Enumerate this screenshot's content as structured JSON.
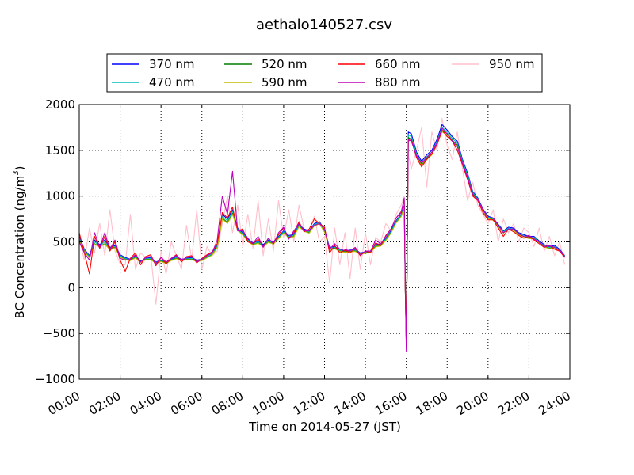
{
  "chart_data": {
    "type": "line",
    "title": "aethalo140527.csv",
    "xlabel": "Time on 2014-05-27 (JST)",
    "ylabel_main": "BC Concentration (ng/m",
    "ylabel_sup": "3",
    "ylabel_close": ")",
    "xlim": [
      0,
      24
    ],
    "ylim": [
      -1000,
      2000
    ],
    "grid": true,
    "legend_position": "top",
    "x_ticks": [
      {
        "value": 0,
        "label": "00:00"
      },
      {
        "value": 2,
        "label": "02:00"
      },
      {
        "value": 4,
        "label": "04:00"
      },
      {
        "value": 6,
        "label": "06:00"
      },
      {
        "value": 8,
        "label": "08:00"
      },
      {
        "value": 10,
        "label": "10:00"
      },
      {
        "value": 12,
        "label": "12:00"
      },
      {
        "value": 14,
        "label": "14:00"
      },
      {
        "value": 16,
        "label": "16:00"
      },
      {
        "value": 18,
        "label": "18:00"
      },
      {
        "value": 20,
        "label": "20:00"
      },
      {
        "value": 22,
        "label": "22:00"
      },
      {
        "value": 24,
        "label": "24:00"
      }
    ],
    "y_ticks": [
      {
        "value": 2000,
        "label": "2000"
      },
      {
        "value": 1500,
        "label": "1500"
      },
      {
        "value": 1000,
        "label": "1000"
      },
      {
        "value": 500,
        "label": "500"
      },
      {
        "value": 0,
        "label": "0"
      },
      {
        "value": -500,
        "label": "−500"
      },
      {
        "value": -1000,
        "label": "−1000"
      }
    ],
    "x": [
      0,
      0.25,
      0.5,
      0.75,
      1,
      1.25,
      1.5,
      1.75,
      2,
      2.25,
      2.5,
      2.75,
      3,
      3.25,
      3.5,
      3.75,
      4,
      4.25,
      4.5,
      4.75,
      5,
      5.25,
      5.5,
      5.75,
      6,
      6.25,
      6.5,
      6.75,
      7,
      7.25,
      7.5,
      7.75,
      8,
      8.25,
      8.5,
      8.75,
      9,
      9.25,
      9.5,
      9.75,
      10,
      10.25,
      10.5,
      10.75,
      11,
      11.25,
      11.5,
      11.75,
      12,
      12.25,
      12.5,
      12.75,
      13,
      13.25,
      13.5,
      13.75,
      14,
      14.25,
      14.5,
      14.75,
      15,
      15.25,
      15.5,
      15.75,
      15.9,
      15.95,
      16.0,
      16.1,
      16.25,
      16.5,
      16.75,
      17,
      17.25,
      17.5,
      17.75,
      18,
      18.25,
      18.5,
      18.75,
      19,
      19.25,
      19.5,
      19.75,
      20,
      20.25,
      20.5,
      20.75,
      21,
      21.25,
      21.5,
      21.75,
      22,
      22.25,
      22.5,
      22.75,
      23,
      23.25,
      23.5,
      23.75
    ],
    "series": [
      {
        "name": "370 nm",
        "color": "#0000ff",
        "values": [
          560,
          420,
          350,
          520,
          470,
          520,
          440,
          460,
          360,
          330,
          310,
          350,
          290,
          320,
          330,
          280,
          300,
          280,
          310,
          340,
          310,
          320,
          330,
          300,
          310,
          350,
          380,
          460,
          800,
          750,
          850,
          650,
          600,
          530,
          490,
          510,
          470,
          520,
          500,
          560,
          620,
          570,
          580,
          690,
          640,
          620,
          700,
          720,
          630,
          440,
          450,
          420,
          400,
          410,
          420,
          380,
          390,
          400,
          470,
          480,
          540,
          620,
          730,
          800,
          900,
          0,
          -650,
          1700,
          1680,
          1480,
          1380,
          1450,
          1500,
          1620,
          1780,
          1720,
          1650,
          1600,
          1400,
          1250,
          1050,
          980,
          860,
          780,
          760,
          690,
          620,
          660,
          650,
          600,
          580,
          560,
          560,
          510,
          470,
          450,
          460,
          420,
          350
        ]
      },
      {
        "name": "470 nm",
        "color": "#00bfbf",
        "values": [
          540,
          410,
          340,
          500,
          460,
          500,
          430,
          450,
          350,
          320,
          305,
          340,
          285,
          315,
          320,
          275,
          295,
          275,
          305,
          330,
          305,
          315,
          320,
          295,
          305,
          340,
          370,
          450,
          780,
          730,
          830,
          640,
          590,
          520,
          480,
          500,
          460,
          510,
          490,
          550,
          610,
          560,
          570,
          680,
          630,
          610,
          690,
          710,
          620,
          430,
          440,
          410,
          395,
          400,
          410,
          375,
          385,
          395,
          460,
          470,
          530,
          610,
          720,
          790,
          890,
          0,
          -640,
          1670,
          1650,
          1460,
          1360,
          1430,
          1480,
          1600,
          1750,
          1700,
          1630,
          1580,
          1380,
          1230,
          1040,
          970,
          850,
          770,
          750,
          680,
          610,
          650,
          640,
          590,
          570,
          550,
          550,
          500,
          460,
          440,
          450,
          410,
          345
        ]
      },
      {
        "name": "520 nm",
        "color": "#007f00",
        "values": [
          520,
          400,
          330,
          480,
          450,
          480,
          420,
          440,
          340,
          310,
          300,
          330,
          280,
          310,
          310,
          270,
          290,
          270,
          300,
          320,
          300,
          310,
          310,
          290,
          300,
          330,
          360,
          440,
          760,
          710,
          810,
          630,
          580,
          510,
          470,
          490,
          450,
          500,
          480,
          540,
          600,
          550,
          560,
          670,
          620,
          600,
          680,
          700,
          610,
          420,
          430,
          400,
          390,
          395,
          400,
          370,
          380,
          390,
          450,
          460,
          520,
          600,
          710,
          780,
          880,
          0,
          -630,
          1640,
          1620,
          1440,
          1340,
          1410,
          1460,
          1580,
          1720,
          1680,
          1610,
          1560,
          1360,
          1210,
          1030,
          960,
          840,
          760,
          740,
          670,
          600,
          640,
          630,
          580,
          560,
          540,
          540,
          490,
          450,
          430,
          440,
          400,
          340
        ]
      },
      {
        "name": "590 nm",
        "color": "#bfbf00",
        "values": [
          510,
          395,
          325,
          475,
          445,
          475,
          415,
          435,
          335,
          305,
          295,
          325,
          275,
          305,
          305,
          265,
          285,
          265,
          295,
          315,
          295,
          305,
          305,
          285,
          295,
          325,
          355,
          435,
          750,
          700,
          800,
          625,
          575,
          505,
          465,
          485,
          445,
          495,
          475,
          535,
          595,
          545,
          555,
          665,
          615,
          595,
          675,
          695,
          605,
          415,
          425,
          395,
          385,
          390,
          395,
          365,
          375,
          385,
          445,
          455,
          515,
          595,
          705,
          775,
          875,
          0,
          -620,
          1620,
          1600,
          1430,
          1330,
          1400,
          1450,
          1570,
          1700,
          1670,
          1600,
          1550,
          1350,
          1200,
          1020,
          950,
          835,
          755,
          735,
          665,
          595,
          635,
          625,
          575,
          555,
          535,
          535,
          485,
          445,
          425,
          435,
          395,
          335
        ]
      },
      {
        "name": "660 nm",
        "color": "#ff0000",
        "values": [
          600,
          380,
          150,
          560,
          430,
          560,
          400,
          500,
          300,
          180,
          320,
          380,
          250,
          340,
          360,
          240,
          330,
          260,
          320,
          360,
          280,
          340,
          350,
          270,
          320,
          360,
          390,
          480,
          820,
          760,
          880,
          620,
          640,
          500,
          480,
          530,
          450,
          540,
          480,
          580,
          650,
          540,
          600,
          720,
          610,
          640,
          750,
          700,
          660,
          380,
          460,
          380,
          410,
          380,
          430,
          350,
          400,
          380,
          490,
          460,
          570,
          640,
          760,
          830,
          950,
          0,
          -600,
          1600,
          1620,
          1420,
          1320,
          1400,
          1460,
          1560,
          1720,
          1650,
          1600,
          1500,
          1340,
          1180,
          1000,
          950,
          820,
          740,
          740,
          650,
          560,
          640,
          610,
          570,
          540,
          560,
          520,
          480,
          440,
          460,
          420,
          400,
          330
        ]
      },
      {
        "name": "880 nm",
        "color": "#bf00bf",
        "values": [
          500,
          380,
          300,
          600,
          440,
          600,
          420,
          520,
          320,
          300,
          310,
          360,
          280,
          330,
          340,
          260,
          330,
          280,
          320,
          350,
          300,
          330,
          340,
          280,
          310,
          350,
          380,
          520,
          1000,
          800,
          1270,
          620,
          620,
          540,
          480,
          560,
          440,
          540,
          480,
          600,
          660,
          530,
          620,
          700,
          620,
          620,
          680,
          700,
          640,
          420,
          480,
          420,
          420,
          400,
          440,
          360,
          400,
          400,
          520,
          480,
          560,
          640,
          760,
          820,
          980,
          0,
          -700,
          1620,
          1600,
          1440,
          1360,
          1420,
          1480,
          1580,
          1740,
          1680,
          1600,
          1540,
          1360,
          1200,
          1020,
          960,
          850,
          760,
          760,
          680,
          600,
          640,
          640,
          590,
          560,
          570,
          530,
          500,
          450,
          460,
          440,
          410,
          340
        ]
      },
      {
        "name": "950 nm",
        "color": "#ffc0cb",
        "values": [
          540,
          300,
          650,
          380,
          700,
          350,
          850,
          400,
          260,
          250,
          800,
          200,
          380,
          330,
          350,
          -180,
          400,
          150,
          500,
          350,
          200,
          680,
          300,
          850,
          200,
          450,
          350,
          400,
          700,
          1000,
          600,
          900,
          450,
          800,
          430,
          950,
          350,
          750,
          400,
          950,
          550,
          850,
          500,
          900,
          640,
          600,
          780,
          500,
          560,
          50,
          650,
          250,
          600,
          100,
          650,
          200,
          600,
          250,
          550,
          500,
          700,
          620,
          800,
          900,
          1000,
          0,
          -550,
          1450,
          1300,
          1500,
          1750,
          1100,
          1700,
          1500,
          1850,
          1550,
          1400,
          1700,
          1300,
          950,
          1150,
          900,
          800,
          700,
          850,
          500,
          750,
          600,
          700,
          500,
          650,
          600,
          450,
          650,
          400,
          560,
          350,
          500,
          250
        ]
      }
    ]
  }
}
